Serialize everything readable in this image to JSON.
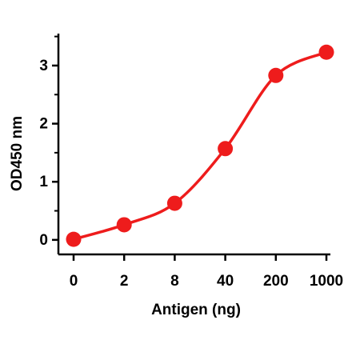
{
  "chart_data": {
    "type": "line",
    "x_label": "Antigen (ng)",
    "y_label": "OD450 nm",
    "categories": [
      "0",
      "2",
      "8",
      "40",
      "200",
      "1000"
    ],
    "values": [
      0.01,
      0.26,
      0.63,
      1.57,
      2.83,
      3.23
    ],
    "color": "#ee1c1c",
    "markers": true,
    "ylim": [
      -0.25,
      3.55
    ],
    "yticks": [
      0,
      1,
      2,
      3
    ],
    "yminorticks": [
      0.5,
      1.5,
      2.5,
      3.5
    ]
  }
}
